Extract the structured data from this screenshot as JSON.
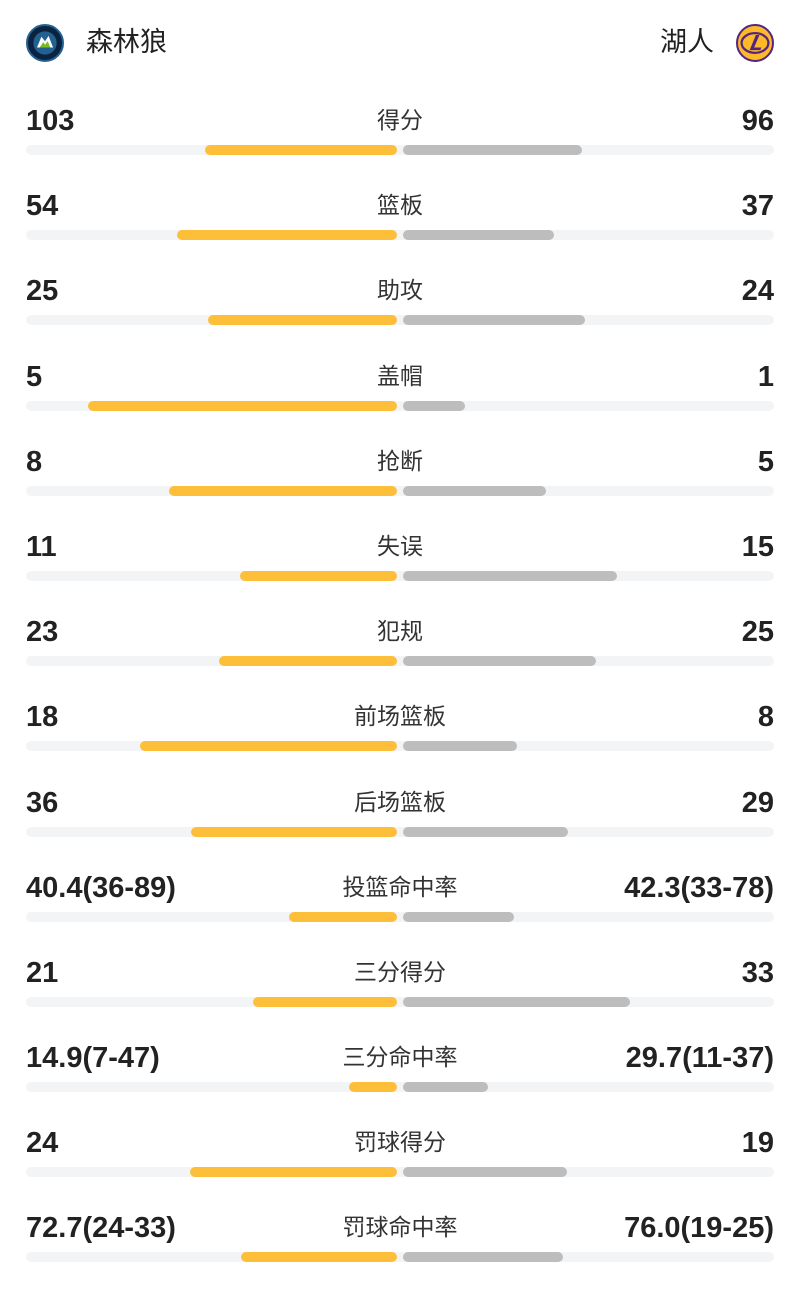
{
  "header": {
    "home_team": "森林狼",
    "away_team": "湖人",
    "home_icon": "timberwolves-logo-icon",
    "away_icon": "lakers-logo-icon"
  },
  "colors": {
    "home_bar": "#fdbf3a",
    "away_bar": "#bdbdbd",
    "track": "#f3f4f6"
  },
  "stats": [
    {
      "label": "得分",
      "home": "103",
      "away": "96",
      "home_share": 0.518,
      "away_share": 0.482
    },
    {
      "label": "篮板",
      "home": "54",
      "away": "37",
      "home_share": 0.593,
      "away_share": 0.407
    },
    {
      "label": "助攻",
      "home": "25",
      "away": "24",
      "home_share": 0.51,
      "away_share": 0.49
    },
    {
      "label": "盖帽",
      "home": "5",
      "away": "1",
      "home_share": 0.833,
      "away_share": 0.167
    },
    {
      "label": "抢断",
      "home": "8",
      "away": "5",
      "home_share": 0.615,
      "away_share": 0.385
    },
    {
      "label": "失误",
      "home": "11",
      "away": "15",
      "home_share": 0.423,
      "away_share": 0.577
    },
    {
      "label": "犯规",
      "home": "23",
      "away": "25",
      "home_share": 0.479,
      "away_share": 0.521
    },
    {
      "label": "前场篮板",
      "home": "18",
      "away": "8",
      "home_share": 0.692,
      "away_share": 0.308
    },
    {
      "label": "后场篮板",
      "home": "36",
      "away": "29",
      "home_share": 0.554,
      "away_share": 0.446
    },
    {
      "label": "投篮命中率",
      "home": "40.4(36-89)",
      "away": "42.3(33-78)",
      "home_share": 0.29,
      "away_share": 0.3
    },
    {
      "label": "三分得分",
      "home": "21",
      "away": "33",
      "home_share": 0.389,
      "away_share": 0.611
    },
    {
      "label": "三分命中率",
      "home": "14.9(7-47)",
      "away": "29.7(11-37)",
      "home_share": 0.13,
      "away_share": 0.23
    },
    {
      "label": "罚球得分",
      "home": "24",
      "away": "19",
      "home_share": 0.558,
      "away_share": 0.442
    },
    {
      "label": "罚球命中率",
      "home": "72.7(24-33)",
      "away": "76.0(19-25)",
      "home_share": 0.42,
      "away_share": 0.43
    }
  ]
}
